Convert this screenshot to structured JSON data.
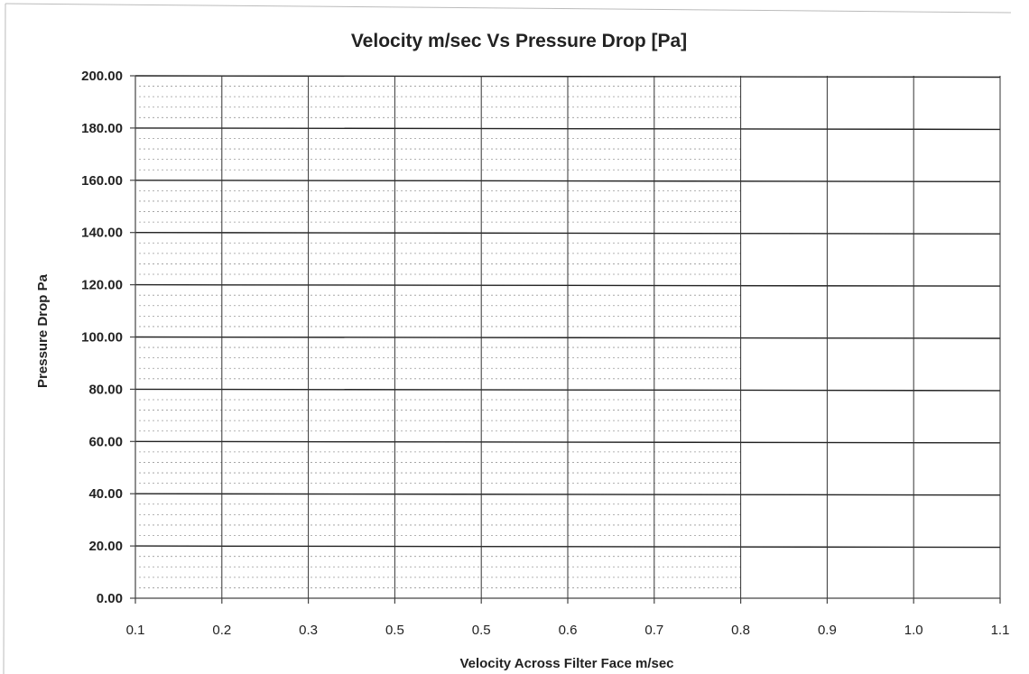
{
  "chart_data": {
    "type": "line",
    "title": "Velocity m/sec Vs Pressure Drop [Pa]",
    "xlabel": "Velocity Across Filter Face m/sec",
    "ylabel": "Pressure Drop Pa",
    "x_tick_labels": [
      "0.1",
      "0.2",
      "0.3",
      "0.5",
      "0.5",
      "0.6",
      "0.7",
      "0.8",
      "0.9",
      "1.0",
      "1.1"
    ],
    "y_tick_labels": [
      "0.00",
      "20.00",
      "40.00",
      "60.00",
      "80.00",
      "100.00",
      "120.00",
      "140.00",
      "160.00",
      "180.00",
      "200.00"
    ],
    "ylim": [
      0,
      200
    ],
    "y_major_step": 20,
    "y_minor_step": 4,
    "grid": true,
    "series": []
  },
  "colors": {
    "grid": "#222222",
    "text": "#222222",
    "background": "#ffffff"
  }
}
